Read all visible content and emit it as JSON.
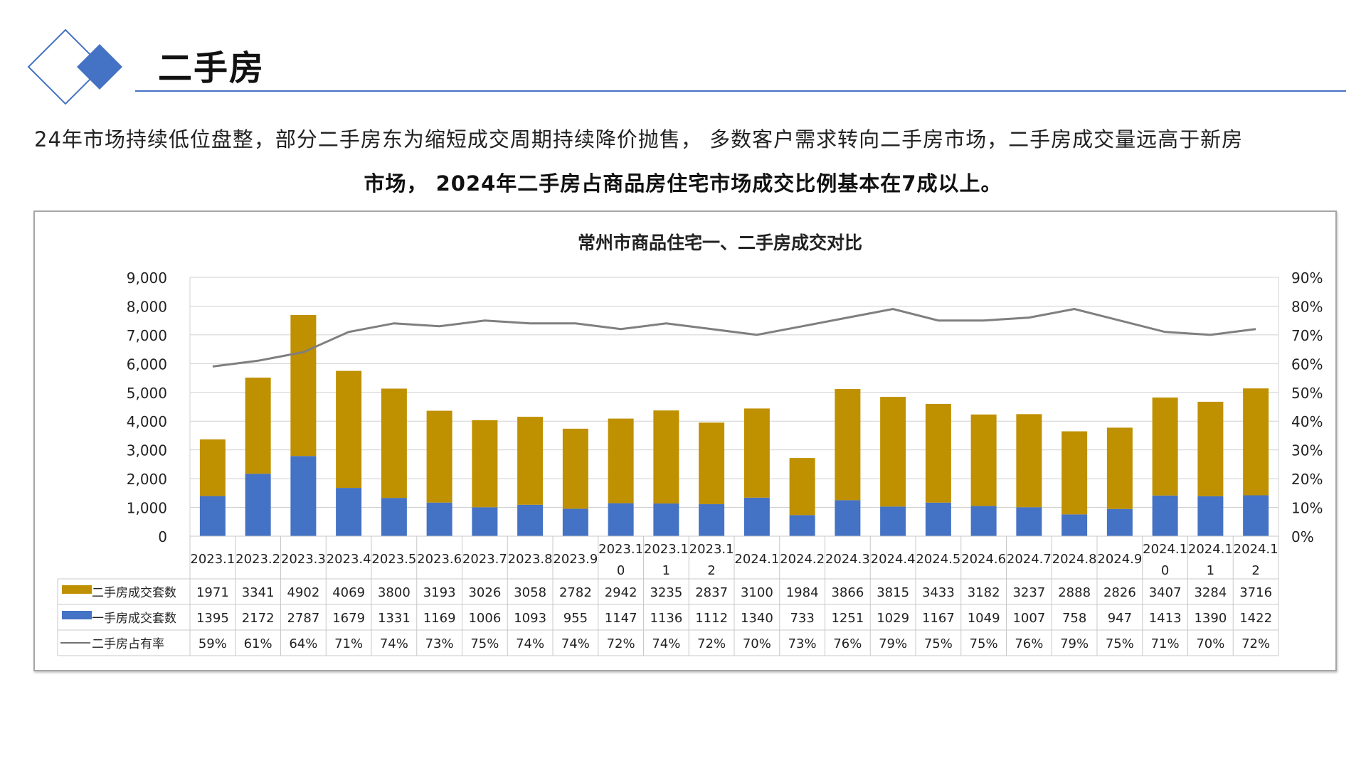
{
  "page": {
    "title": "二手房",
    "summary_line1": "24年市场持续低位盘整，部分二手房东为缩短成交周期持续降价抛售， 多数客户需求转向二手房市场，二手房成交量远高于新房",
    "summary_line2": "市场， 2024年二手房占商品房住宅市场成交比例基本在7成以上。",
    "accent_color": "#4472c4"
  },
  "chart_data": {
    "type": "bar",
    "stacked": true,
    "title": "常州市商品住宅一、二手房成交对比",
    "categories": [
      "2023.1",
      "2023.2",
      "2023.3",
      "2023.4",
      "2023.5",
      "2023.6",
      "2023.7",
      "2023.8",
      "2023.9",
      "2023.10",
      "2023.11",
      "2023.12",
      "2024.1",
      "2024.2",
      "2024.3",
      "2024.4",
      "2024.5",
      "2024.6",
      "2024.7",
      "2024.8",
      "2024.9",
      "2024.10",
      "2024.11",
      "2024.12"
    ],
    "category_label_lines": [
      [
        "2023.1"
      ],
      [
        "2023.2"
      ],
      [
        "2023.3"
      ],
      [
        "2023.4"
      ],
      [
        "2023.5"
      ],
      [
        "2023.6"
      ],
      [
        "2023.7"
      ],
      [
        "2023.8"
      ],
      [
        "2023.9"
      ],
      [
        "2023.1",
        "0"
      ],
      [
        "2023.1",
        "1"
      ],
      [
        "2023.1",
        "2"
      ],
      [
        "2024.1"
      ],
      [
        "2024.2"
      ],
      [
        "2024.3"
      ],
      [
        "2024.4"
      ],
      [
        "2024.5"
      ],
      [
        "2024.6"
      ],
      [
        "2024.7"
      ],
      [
        "2024.8"
      ],
      [
        "2024.9"
      ],
      [
        "2024.1",
        "0"
      ],
      [
        "2024.1",
        "1"
      ],
      [
        "2024.1",
        "2"
      ]
    ],
    "series": [
      {
        "name": "一手房成交套数",
        "kind": "bar",
        "color": "#4472c4",
        "values": [
          1395,
          2172,
          2787,
          1679,
          1331,
          1169,
          1006,
          1093,
          955,
          1147,
          1136,
          1112,
          1340,
          733,
          1251,
          1029,
          1167,
          1049,
          1007,
          758,
          947,
          1413,
          1390,
          1422
        ]
      },
      {
        "name": "二手房成交套数",
        "kind": "bar",
        "color": "#bf9000",
        "values": [
          1971,
          3341,
          4902,
          4069,
          3800,
          3193,
          3026,
          3058,
          2782,
          2942,
          3235,
          2837,
          3100,
          1984,
          3866,
          3815,
          3433,
          3182,
          3237,
          2888,
          2826,
          3407,
          3284,
          3716
        ]
      },
      {
        "name": "二手房占有率",
        "kind": "line",
        "color": "#7f7f7f",
        "axis": "right",
        "values": [
          59,
          61,
          64,
          71,
          74,
          73,
          75,
          74,
          74,
          72,
          74,
          72,
          70,
          73,
          76,
          79,
          75,
          75,
          76,
          79,
          75,
          71,
          70,
          72
        ],
        "labels": [
          "59%",
          "61%",
          "64%",
          "71%",
          "74%",
          "73%",
          "75%",
          "74%",
          "74%",
          "72%",
          "74%",
          "72%",
          "70%",
          "73%",
          "76%",
          "79%",
          "75%",
          "75%",
          "76%",
          "79%",
          "75%",
          "71%",
          "70%",
          "72%"
        ]
      }
    ],
    "table_rows": [
      {
        "series": 1,
        "legend": "二手房成交套数",
        "swatch": "bar",
        "cells": [
          "1971",
          "3341",
          "4902",
          "4069",
          "3800",
          "3193",
          "3026",
          "3058",
          "2782",
          "2942",
          "3235",
          "2837",
          "3100",
          "1984",
          "3866",
          "3815",
          "3433",
          "3182",
          "3237",
          "2888",
          "2826",
          "3407",
          "3284",
          "3716"
        ]
      },
      {
        "series": 0,
        "legend": "一手房成交套数",
        "swatch": "bar",
        "cells": [
          "1395",
          "2172",
          "2787",
          "1679",
          "1331",
          "1169",
          "1006",
          "1093",
          "955",
          "1147",
          "1136",
          "1112",
          "1340",
          "733",
          "1251",
          "1029",
          "1167",
          "1049",
          "1007",
          "758",
          "947",
          "1413",
          "1390",
          "1422"
        ]
      },
      {
        "series": 2,
        "legend": "二手房占有率",
        "swatch": "line",
        "cells": [
          "59%",
          "61%",
          "64%",
          "71%",
          "74%",
          "73%",
          "75%",
          "74%",
          "74%",
          "72%",
          "74%",
          "72%",
          "70%",
          "73%",
          "76%",
          "79%",
          "75%",
          "75%",
          "76%",
          "79%",
          "75%",
          "71%",
          "70%",
          "72%"
        ]
      }
    ],
    "ylim": [
      0,
      9000
    ],
    "y2lim": [
      0,
      90
    ],
    "y_ticks": [
      "0",
      "1,000",
      "2,000",
      "3,000",
      "4,000",
      "5,000",
      "6,000",
      "7,000",
      "8,000",
      "9,000"
    ],
    "y2_ticks": [
      "0%",
      "10%",
      "20%",
      "30%",
      "40%",
      "50%",
      "60%",
      "70%",
      "80%",
      "90%"
    ],
    "grid": true,
    "legend": "data-table"
  }
}
